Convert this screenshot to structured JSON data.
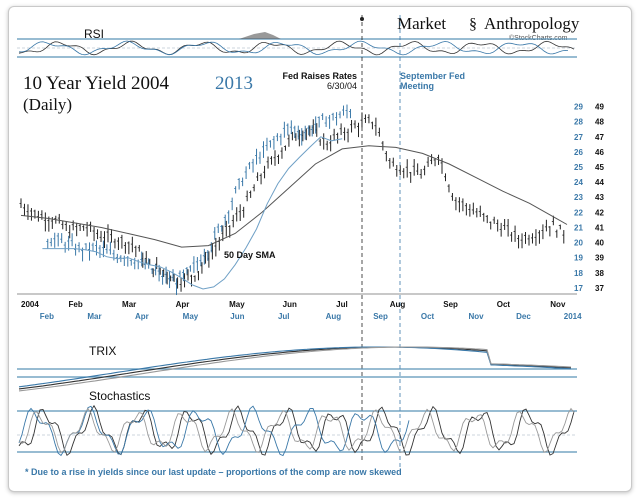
{
  "header": {
    "brand_left": "Market",
    "brand_right": "Anthropology",
    "brand_sub": "©StockCharts.com",
    "title_black": "10 Year Yield  2004",
    "title_blue": "2013",
    "subtitle": "(Daily)"
  },
  "annotations": {
    "fed_line1": "Fed Raises Rates",
    "fed_line2": "6/30/04",
    "sept_line1": "September Fed",
    "sept_line2": "Meeting",
    "sma_label": "50 Day SMA",
    "footnote": "* Due to a rise in yields since our last update – proportions of the comp are now skewed"
  },
  "panels": {
    "rsi_label": "RSI",
    "trix_label": "TRIX",
    "stoch_label": "Stochastics"
  },
  "colors": {
    "series_2004": "#222222",
    "series_2013": "#3a78a8",
    "panel_lines": "#5a93b8",
    "rsi_fill": "#555555"
  },
  "chart_data": {
    "type": "line",
    "title": "10 Year Yield  2004 2013",
    "subtitle": "(Daily)",
    "x_axis_2004": [
      "2004",
      "Feb",
      "Mar",
      "Apr",
      "May",
      "Jun",
      "Jul",
      "Aug",
      "Sep",
      "Oct",
      "Nov"
    ],
    "x_axis_2013": [
      "Feb",
      "Mar",
      "Apr",
      "May",
      "Jun",
      "Jul",
      "Aug",
      "Sep",
      "Oct",
      "Nov",
      "Dec",
      "2014"
    ],
    "y_axis_2004": [
      37,
      38,
      39,
      40,
      41,
      42,
      43,
      44,
      45,
      46,
      47,
      48,
      49
    ],
    "y_axis_2013": [
      17,
      18,
      19,
      20,
      21,
      22,
      23,
      24,
      25,
      26,
      27,
      28,
      29
    ],
    "ylim_2004": [
      36.6,
      49.3
    ],
    "series": [
      {
        "name": "2004",
        "x": [
          0,
          0.3,
          0.6,
          0.9,
          1.2,
          1.5,
          1.8,
          2.1,
          2.4,
          2.7,
          3.0,
          3.3,
          3.6,
          3.9,
          4.2,
          4.5,
          4.8,
          5.1,
          5.4,
          5.7,
          6.0,
          6.3,
          6.6,
          6.9,
          7.2,
          7.5,
          7.8,
          8.1,
          8.4,
          8.7,
          9.0,
          9.3,
          9.6,
          9.9,
          10.2
        ],
        "y": [
          42.5,
          41.8,
          41.5,
          40.8,
          41.0,
          40.4,
          40.2,
          39.8,
          38.5,
          38.0,
          37.4,
          38.0,
          39.5,
          41.0,
          42.5,
          44.5,
          45.8,
          47.0,
          47.5,
          46.5,
          47.2,
          47.8,
          48.0,
          45.2,
          44.8,
          44.5,
          45.8,
          42.8,
          42.2,
          41.5,
          41.0,
          40.2,
          40.5,
          41.2,
          40.4
        ]
      },
      {
        "name": "2013",
        "x": [
          0.5,
          0.8,
          1.1,
          1.4,
          1.7,
          2.0,
          2.3,
          2.6,
          2.9,
          3.2,
          3.5,
          3.8,
          4.1,
          4.4,
          4.7,
          5.0,
          5.3,
          5.6,
          5.9,
          6.2
        ],
        "y": [
          20.2,
          20.0,
          19.5,
          19.6,
          19.2,
          19.0,
          18.5,
          17.8,
          17.4,
          18.2,
          19.6,
          21.5,
          24.0,
          25.5,
          26.6,
          27.6,
          27.2,
          28.0,
          28.3,
          28.8
        ]
      },
      {
        "name": "50 Day SMA",
        "x": [
          0,
          0.5,
          1.0,
          1.5,
          2.0,
          2.5,
          3.0,
          3.5,
          4.0,
          4.5,
          5.0,
          5.5,
          6.0,
          6.5,
          7.0,
          7.5,
          8.0,
          8.5,
          9.0,
          9.5,
          10.0,
          10.2
        ],
        "y": [
          41.8,
          41.6,
          41.3,
          41.0,
          40.6,
          40.2,
          39.7,
          39.8,
          40.6,
          42.0,
          43.6,
          45.2,
          46.2,
          46.4,
          46.3,
          45.9,
          45.2,
          44.3,
          43.4,
          42.6,
          41.6,
          41.2
        ]
      }
    ]
  }
}
